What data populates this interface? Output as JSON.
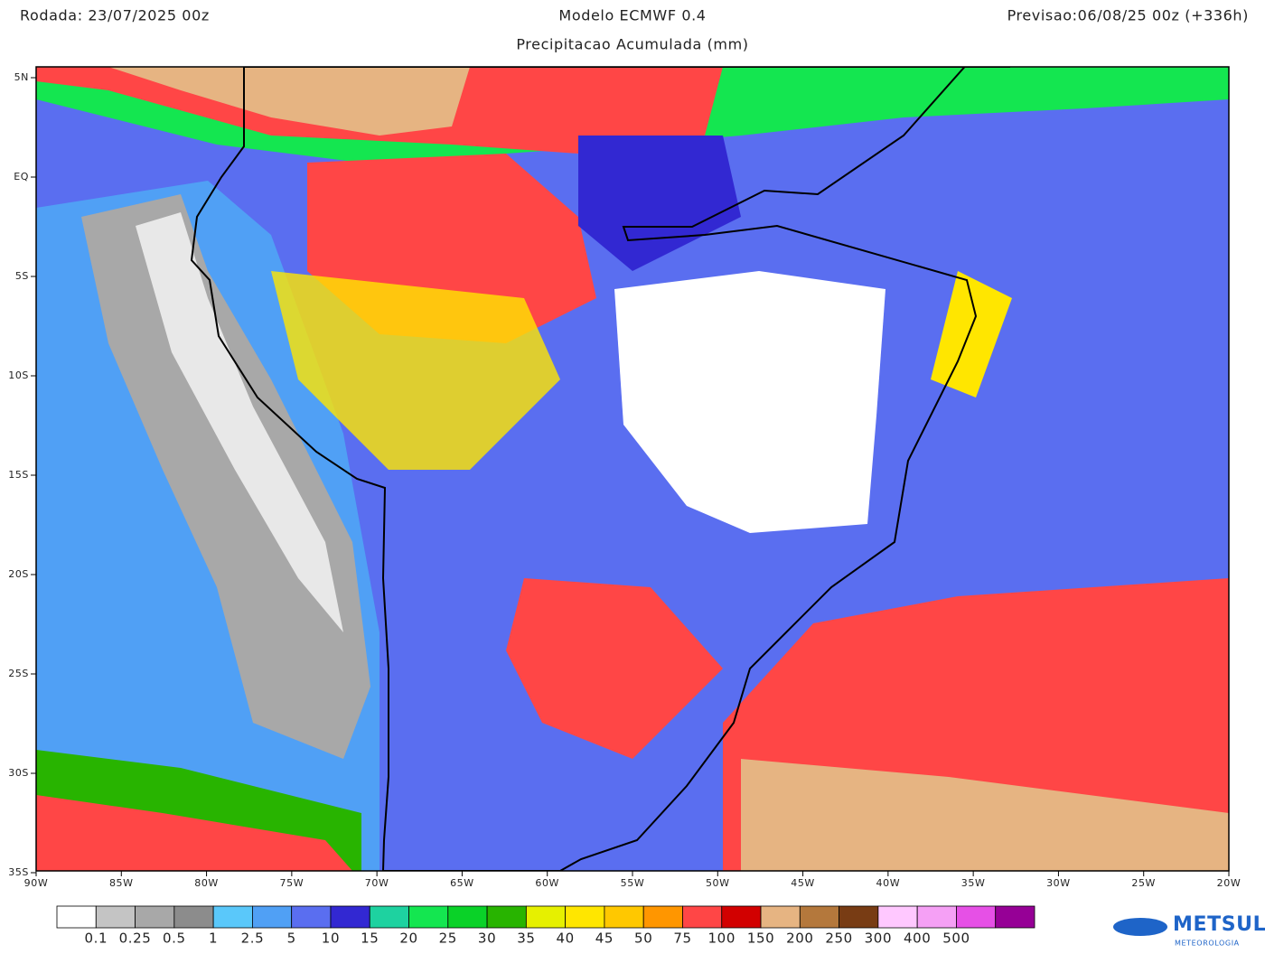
{
  "header": {
    "run": "Rodada: 23/07/2025 00z",
    "model": "Modelo ECMWF 0.4",
    "forecast": "Previsao:06/08/25 00z (+336h)",
    "subtitle": "Precipitacao Acumulada (mm)"
  },
  "map": {
    "lat_labels": [
      "5N",
      "EQ",
      "5S",
      "10S",
      "15S",
      "20S",
      "25S",
      "30S",
      "35S"
    ],
    "lon_labels": [
      "90W",
      "85W",
      "80W",
      "75W",
      "70W",
      "65W",
      "60W",
      "55W",
      "50W",
      "45W",
      "40W",
      "35W",
      "30W",
      "25W",
      "20W"
    ]
  },
  "legend": {
    "colors": [
      "#ffffff",
      "#c4c4c4",
      "#a8a8a8",
      "#8c8c8c",
      "#5ac8fa",
      "#50a0f5",
      "#5a6ef0",
      "#3228d2",
      "#1ed2a0",
      "#14e650",
      "#0ad228",
      "#28b400",
      "#e6f000",
      "#ffe600",
      "#ffc800",
      "#ff9600",
      "#ff4646",
      "#d20000",
      "#e6b482",
      "#b4783c",
      "#783c14",
      "#ffc8ff",
      "#f5a0f5",
      "#e650e6",
      "#960096"
    ],
    "labels": [
      "0.1",
      "0.25",
      "0.5",
      "1",
      "2.5",
      "5",
      "10",
      "15",
      "20",
      "25",
      "30",
      "35",
      "40",
      "45",
      "50",
      "75",
      "100",
      "150",
      "200",
      "250",
      "300",
      "400",
      "500"
    ]
  },
  "logo": {
    "name": "METSUL",
    "tagline": "METEOROLOGIA"
  }
}
